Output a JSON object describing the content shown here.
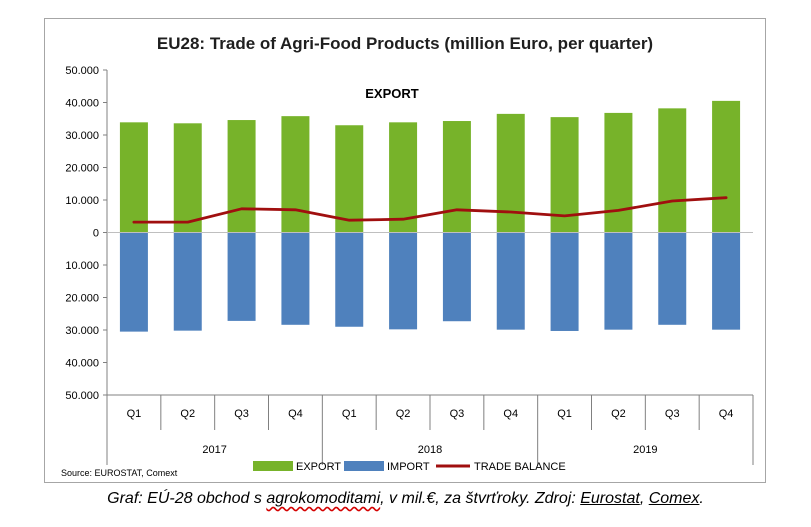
{
  "chart_data": {
    "type": "bar",
    "title": "EU28: Trade of Agri-Food Products (million Euro, per quarter)",
    "annotation": "EXPORT",
    "source": "Source: EUROSTAT, Comext",
    "quarters": [
      "Q1",
      "Q2",
      "Q3",
      "Q4",
      "Q1",
      "Q2",
      "Q3",
      "Q4",
      "Q1",
      "Q2",
      "Q3",
      "Q4"
    ],
    "years": [
      "2017",
      "2018",
      "2019"
    ],
    "y_tick_labels": [
      "50.000",
      "40.000",
      "30.000",
      "20.000",
      "10.000",
      "0",
      "10.000",
      "20.000",
      "30.000",
      "40.000",
      "50.000"
    ],
    "ylim": [
      -50000,
      50000
    ],
    "stacked": true,
    "grid": false,
    "legend_position": "bottom",
    "series": [
      {
        "name": "EXPORT",
        "kind": "bar",
        "color": "#77b32a",
        "values": [
          33900,
          33600,
          34600,
          35800,
          33000,
          33900,
          34300,
          36500,
          35500,
          36800,
          38200,
          40500
        ]
      },
      {
        "name": "IMPORT",
        "kind": "bar",
        "color": "#4f81bd",
        "values": [
          -30500,
          -30200,
          -27200,
          -28400,
          -29000,
          -29800,
          -27300,
          -29900,
          -30300,
          -29900,
          -28400,
          -29900
        ]
      },
      {
        "name": "TRADE BALANCE",
        "kind": "line",
        "color": "#a00f0f",
        "values": [
          3200,
          3200,
          7300,
          7000,
          3800,
          4100,
          7000,
          6300,
          5100,
          6800,
          9700,
          10700
        ]
      }
    ]
  },
  "caption": {
    "prefix": "Graf: EÚ-28 obchod s ",
    "word_sq": "agrokomoditami",
    "middle": ", v mil.€, za štvrťroky. Zdroj: ",
    "src1": "Eurostat",
    "sep": ", ",
    "src2": "Comex",
    "end": "."
  }
}
